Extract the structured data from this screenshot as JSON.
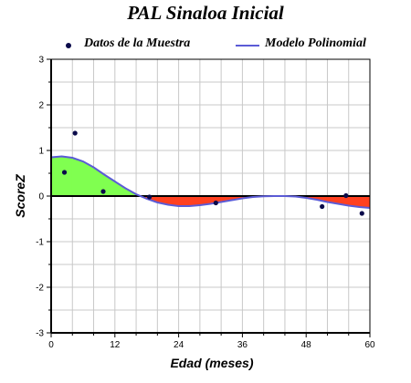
{
  "chart_data": {
    "type": "scatter",
    "title": "PAL Sinaloa Inicial",
    "xlabel": "Edad (meses)",
    "ylabel": "ScoreZ",
    "xlim": [
      0,
      60
    ],
    "ylim": [
      -3,
      3
    ],
    "x_ticks": [
      0,
      12,
      24,
      36,
      48,
      60
    ],
    "y_ticks": [
      -3,
      -2,
      -1,
      0,
      1,
      2,
      3
    ],
    "grid": true,
    "legend_position": "top",
    "series": [
      {
        "name": "Datos de la Muestra",
        "kind": "scatter",
        "color": "#0a0a4a",
        "points": [
          {
            "x": 2.5,
            "y": 0.52
          },
          {
            "x": 4.5,
            "y": 1.38
          },
          {
            "x": 9.8,
            "y": 0.1
          },
          {
            "x": 18.5,
            "y": -0.02
          },
          {
            "x": 31,
            "y": -0.15
          },
          {
            "x": 51,
            "y": -0.23
          },
          {
            "x": 55.5,
            "y": 0.01
          },
          {
            "x": 58.5,
            "y": -0.38
          }
        ]
      },
      {
        "name": "Modelo Polinomial",
        "kind": "line",
        "color": "#5b5bd6",
        "points": [
          {
            "x": 0,
            "y": 0.85
          },
          {
            "x": 2,
            "y": 0.87
          },
          {
            "x": 4,
            "y": 0.84
          },
          {
            "x": 6,
            "y": 0.76
          },
          {
            "x": 8,
            "y": 0.63
          },
          {
            "x": 10,
            "y": 0.47
          },
          {
            "x": 12,
            "y": 0.32
          },
          {
            "x": 14,
            "y": 0.17
          },
          {
            "x": 16,
            "y": 0.04
          },
          {
            "x": 18,
            "y": -0.06
          },
          {
            "x": 20,
            "y": -0.14
          },
          {
            "x": 22,
            "y": -0.19
          },
          {
            "x": 24,
            "y": -0.22
          },
          {
            "x": 26,
            "y": -0.22
          },
          {
            "x": 28,
            "y": -0.2
          },
          {
            "x": 30,
            "y": -0.17
          },
          {
            "x": 32,
            "y": -0.13
          },
          {
            "x": 34,
            "y": -0.09
          },
          {
            "x": 36,
            "y": -0.05
          },
          {
            "x": 38,
            "y": -0.02
          },
          {
            "x": 40,
            "y": -0.005
          },
          {
            "x": 42,
            "y": 0.0
          },
          {
            "x": 44,
            "y": 0.0
          },
          {
            "x": 46,
            "y": -0.01
          },
          {
            "x": 48,
            "y": -0.04
          },
          {
            "x": 50,
            "y": -0.08
          },
          {
            "x": 52,
            "y": -0.13
          },
          {
            "x": 54,
            "y": -0.17
          },
          {
            "x": 56,
            "y": -0.21
          },
          {
            "x": 58,
            "y": -0.24
          },
          {
            "x": 60,
            "y": -0.26
          }
        ]
      }
    ],
    "fill_positive_color": "#80ff50",
    "fill_negative_color": "#ff4020"
  }
}
